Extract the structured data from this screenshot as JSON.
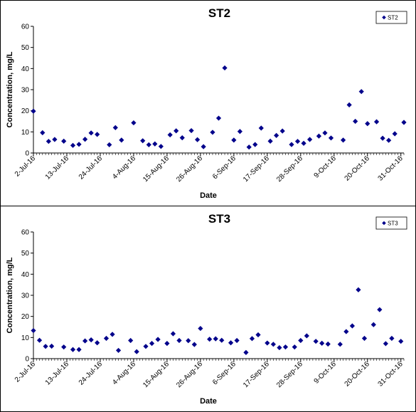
{
  "colors": {
    "marker": "#00008B",
    "axis": "#000000",
    "background": "#ffffff"
  },
  "chart_data": [
    {
      "type": "scatter",
      "title": "ST2",
      "xlabel": "Date",
      "ylabel": "Concentration, mg/L",
      "ylim": [
        0,
        60
      ],
      "yticks": [
        "0",
        "10",
        "20",
        "30",
        "40",
        "50",
        "60"
      ],
      "xlim": [
        "2016-07-02",
        "2016-11-01"
      ],
      "xticks": [
        "2-Jul-16",
        "13-Jul-16",
        "24-Jul-16",
        "4-Aug-16",
        "15-Aug-16",
        "26-Aug-16",
        "6-Sep-16",
        "17-Sep-16",
        "28-Sep-16",
        "9-Oct-16",
        "20-Oct-16",
        "31-Oct-16"
      ],
      "grid": false,
      "legend_position": "top-right",
      "series": [
        {
          "name": "ST2",
          "points": [
            {
              "x": "2016-07-02",
              "y": 19.8
            },
            {
              "x": "2016-07-05",
              "y": 9.6
            },
            {
              "x": "2016-07-07",
              "y": 5.5
            },
            {
              "x": "2016-07-09",
              "y": 6.4
            },
            {
              "x": "2016-07-12",
              "y": 5.6
            },
            {
              "x": "2016-07-15",
              "y": 3.6
            },
            {
              "x": "2016-07-17",
              "y": 4.1
            },
            {
              "x": "2016-07-19",
              "y": 6.5
            },
            {
              "x": "2016-07-21",
              "y": 9.5
            },
            {
              "x": "2016-07-23",
              "y": 8.8
            },
            {
              "x": "2016-07-27",
              "y": 3.9
            },
            {
              "x": "2016-07-29",
              "y": 12.0
            },
            {
              "x": "2016-07-31",
              "y": 6.1
            },
            {
              "x": "2016-08-04",
              "y": 14.3
            },
            {
              "x": "2016-08-07",
              "y": 5.8
            },
            {
              "x": "2016-08-09",
              "y": 3.9
            },
            {
              "x": "2016-08-11",
              "y": 4.3
            },
            {
              "x": "2016-08-13",
              "y": 3.1
            },
            {
              "x": "2016-08-16",
              "y": 8.6
            },
            {
              "x": "2016-08-18",
              "y": 10.5
            },
            {
              "x": "2016-08-20",
              "y": 7.2
            },
            {
              "x": "2016-08-23",
              "y": 10.6
            },
            {
              "x": "2016-08-25",
              "y": 6.3
            },
            {
              "x": "2016-08-27",
              "y": 3.0
            },
            {
              "x": "2016-08-30",
              "y": 9.8
            },
            {
              "x": "2016-09-01",
              "y": 16.5
            },
            {
              "x": "2016-09-03",
              "y": 40.3
            },
            {
              "x": "2016-09-06",
              "y": 6.1
            },
            {
              "x": "2016-09-08",
              "y": 10.2
            },
            {
              "x": "2016-09-11",
              "y": 2.8
            },
            {
              "x": "2016-09-13",
              "y": 4.0
            },
            {
              "x": "2016-09-15",
              "y": 11.8
            },
            {
              "x": "2016-09-18",
              "y": 5.6
            },
            {
              "x": "2016-09-20",
              "y": 8.3
            },
            {
              "x": "2016-09-22",
              "y": 10.4
            },
            {
              "x": "2016-09-25",
              "y": 4.0
            },
            {
              "x": "2016-09-27",
              "y": 5.5
            },
            {
              "x": "2016-09-29",
              "y": 4.6
            },
            {
              "x": "2016-10-01",
              "y": 6.4
            },
            {
              "x": "2016-10-04",
              "y": 8.0
            },
            {
              "x": "2016-10-06",
              "y": 9.5
            },
            {
              "x": "2016-10-08",
              "y": 7.1
            },
            {
              "x": "2016-10-12",
              "y": 6.1
            },
            {
              "x": "2016-10-14",
              "y": 22.8
            },
            {
              "x": "2016-10-16",
              "y": 15.0
            },
            {
              "x": "2016-10-18",
              "y": 29.1
            },
            {
              "x": "2016-10-20",
              "y": 13.9
            },
            {
              "x": "2016-10-23",
              "y": 14.8
            },
            {
              "x": "2016-10-25",
              "y": 7.0
            },
            {
              "x": "2016-10-27",
              "y": 6.0
            },
            {
              "x": "2016-10-29",
              "y": 9.1
            },
            {
              "x": "2016-11-01",
              "y": 14.5
            }
          ]
        }
      ]
    },
    {
      "type": "scatter",
      "title": "ST3",
      "xlabel": "Date",
      "ylabel": "Concentration, mg/L",
      "ylim": [
        0,
        60
      ],
      "yticks": [
        "0",
        "10",
        "20",
        "30",
        "40",
        "50",
        "60"
      ],
      "xlim": [
        "2016-07-02",
        "2016-11-01"
      ],
      "xticks": [
        "2-Jul-16",
        "13-Jul-16",
        "24-Jul-16",
        "4-Aug-16",
        "15-Aug-16",
        "26-Aug-16",
        "6-Sep-16",
        "17-Sep-16",
        "28-Sep-16",
        "9-Oct-16",
        "20-Oct-16",
        "31-Oct-16"
      ],
      "grid": false,
      "legend_position": "top-right",
      "series": [
        {
          "name": "ST3",
          "points": [
            {
              "x": "2016-07-02",
              "y": 13.3
            },
            {
              "x": "2016-07-04",
              "y": 8.7
            },
            {
              "x": "2016-07-06",
              "y": 5.8
            },
            {
              "x": "2016-07-08",
              "y": 5.9
            },
            {
              "x": "2016-07-12",
              "y": 5.5
            },
            {
              "x": "2016-07-15",
              "y": 4.3
            },
            {
              "x": "2016-07-17",
              "y": 4.3
            },
            {
              "x": "2016-07-19",
              "y": 8.4
            },
            {
              "x": "2016-07-21",
              "y": 8.9
            },
            {
              "x": "2016-07-23",
              "y": 7.5
            },
            {
              "x": "2016-07-26",
              "y": 9.6
            },
            {
              "x": "2016-07-28",
              "y": 11.5
            },
            {
              "x": "2016-07-30",
              "y": 3.9
            },
            {
              "x": "2016-08-03",
              "y": 8.6
            },
            {
              "x": "2016-08-05",
              "y": 3.3
            },
            {
              "x": "2016-08-08",
              "y": 5.8
            },
            {
              "x": "2016-08-10",
              "y": 7.2
            },
            {
              "x": "2016-08-12",
              "y": 9.1
            },
            {
              "x": "2016-08-15",
              "y": 7.2
            },
            {
              "x": "2016-08-17",
              "y": 11.8
            },
            {
              "x": "2016-08-19",
              "y": 8.6
            },
            {
              "x": "2016-08-22",
              "y": 8.5
            },
            {
              "x": "2016-08-24",
              "y": 6.7
            },
            {
              "x": "2016-08-26",
              "y": 14.3
            },
            {
              "x": "2016-08-29",
              "y": 9.2
            },
            {
              "x": "2016-08-31",
              "y": 9.4
            },
            {
              "x": "2016-09-02",
              "y": 8.7
            },
            {
              "x": "2016-09-05",
              "y": 7.5
            },
            {
              "x": "2016-09-07",
              "y": 8.6
            },
            {
              "x": "2016-09-10",
              "y": 2.9
            },
            {
              "x": "2016-09-12",
              "y": 9.5
            },
            {
              "x": "2016-09-14",
              "y": 11.3
            },
            {
              "x": "2016-09-17",
              "y": 7.4
            },
            {
              "x": "2016-09-19",
              "y": 6.8
            },
            {
              "x": "2016-09-21",
              "y": 5.2
            },
            {
              "x": "2016-09-23",
              "y": 5.5
            },
            {
              "x": "2016-09-26",
              "y": 5.5
            },
            {
              "x": "2016-09-28",
              "y": 8.6
            },
            {
              "x": "2016-09-30",
              "y": 10.8
            },
            {
              "x": "2016-10-03",
              "y": 8.2
            },
            {
              "x": "2016-10-05",
              "y": 7.3
            },
            {
              "x": "2016-10-07",
              "y": 6.9
            },
            {
              "x": "2016-10-11",
              "y": 6.8
            },
            {
              "x": "2016-10-13",
              "y": 12.8
            },
            {
              "x": "2016-10-15",
              "y": 15.5
            },
            {
              "x": "2016-10-17",
              "y": 32.6
            },
            {
              "x": "2016-10-19",
              "y": 9.6
            },
            {
              "x": "2016-10-22",
              "y": 16.1
            },
            {
              "x": "2016-10-24",
              "y": 23.2
            },
            {
              "x": "2016-10-26",
              "y": 7.1
            },
            {
              "x": "2016-10-28",
              "y": 9.6
            },
            {
              "x": "2016-10-31",
              "y": 8.2
            }
          ]
        }
      ]
    }
  ]
}
